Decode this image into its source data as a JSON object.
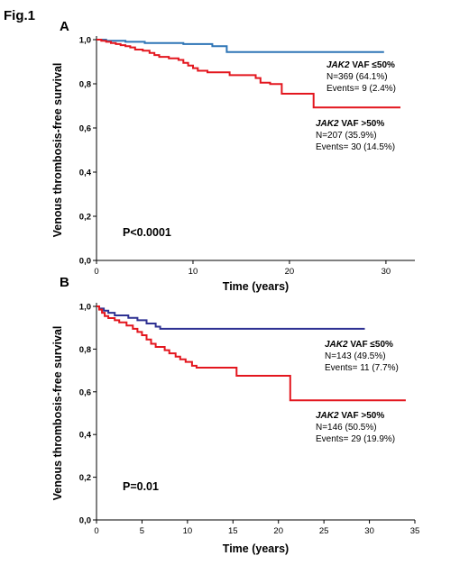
{
  "figure_title": "Fig.1",
  "chart_data": [
    {
      "type": "line",
      "panel_label": "A",
      "xlabel": "Time (years)",
      "ylabel": "Venous thrombosis-free survival",
      "xlim": [
        0,
        33
      ],
      "ylim": [
        0,
        1.0
      ],
      "x_ticks": [
        "0",
        "10",
        "20",
        "30"
      ],
      "y_ticks": [
        "0,0",
        "0,2",
        "0,4",
        "0,6",
        "0,8",
        "1,0"
      ],
      "pvalue": "P<0.0001",
      "series": [
        {
          "name_gene": "JAK2",
          "name_rest": " VAF ≤50%",
          "n_text": "N=369 (64.1%)",
          "events_text": "Events= 9 (2.4%)",
          "color": "#2e75b6",
          "points": [
            [
              0,
              1.0
            ],
            [
              1.0,
              1.0
            ],
            [
              1.0,
              0.995
            ],
            [
              3.0,
              0.995
            ],
            [
              3.0,
              0.99
            ],
            [
              5.0,
              0.99
            ],
            [
              5.0,
              0.985
            ],
            [
              9.0,
              0.985
            ],
            [
              9.0,
              0.98
            ],
            [
              12.0,
              0.98
            ],
            [
              12.0,
              0.97
            ],
            [
              13.5,
              0.97
            ],
            [
              13.5,
              0.944
            ],
            [
              29.8,
              0.944
            ]
          ]
        },
        {
          "name_gene": "JAK2",
          "name_rest": " VAF >50%",
          "n_text": "N=207 (35.9%)",
          "events_text": "Events= 30 (14.5%)",
          "color": "#e3161e",
          "points": [
            [
              0,
              1.0
            ],
            [
              0.5,
              1.0
            ],
            [
              0.5,
              0.995
            ],
            [
              1.0,
              0.995
            ],
            [
              1.0,
              0.99
            ],
            [
              1.5,
              0.99
            ],
            [
              1.5,
              0.985
            ],
            [
              2.0,
              0.985
            ],
            [
              2.0,
              0.98
            ],
            [
              2.5,
              0.98
            ],
            [
              2.5,
              0.975
            ],
            [
              3.0,
              0.975
            ],
            [
              3.0,
              0.97
            ],
            [
              3.5,
              0.97
            ],
            [
              3.5,
              0.965
            ],
            [
              4.0,
              0.965
            ],
            [
              4.0,
              0.955
            ],
            [
              4.8,
              0.955
            ],
            [
              4.8,
              0.95
            ],
            [
              5.5,
              0.95
            ],
            [
              5.5,
              0.94
            ],
            [
              6.0,
              0.94
            ],
            [
              6.0,
              0.93
            ],
            [
              6.5,
              0.93
            ],
            [
              6.5,
              0.922
            ],
            [
              7.5,
              0.922
            ],
            [
              7.5,
              0.915
            ],
            [
              8.5,
              0.915
            ],
            [
              8.5,
              0.908
            ],
            [
              9.0,
              0.908
            ],
            [
              9.0,
              0.895
            ],
            [
              9.5,
              0.895
            ],
            [
              9.5,
              0.883
            ],
            [
              10.0,
              0.883
            ],
            [
              10.0,
              0.871
            ],
            [
              10.5,
              0.871
            ],
            [
              10.5,
              0.859
            ],
            [
              11.5,
              0.859
            ],
            [
              11.5,
              0.852
            ],
            [
              13.8,
              0.852
            ],
            [
              13.8,
              0.839
            ],
            [
              16.5,
              0.839
            ],
            [
              16.5,
              0.826
            ],
            [
              17.0,
              0.826
            ],
            [
              17.0,
              0.805
            ],
            [
              18.0,
              0.805
            ],
            [
              18.0,
              0.799
            ],
            [
              19.2,
              0.799
            ],
            [
              19.2,
              0.755
            ],
            [
              22.5,
              0.755
            ],
            [
              22.5,
              0.693
            ],
            [
              31.5,
              0.693
            ]
          ]
        }
      ]
    },
    {
      "type": "line",
      "panel_label": "B",
      "xlabel": "Time (years)",
      "ylabel": "Venous thrombosis-free survival",
      "xlim": [
        0,
        35
      ],
      "ylim": [
        0,
        1.0
      ],
      "x_ticks": [
        "0",
        "5",
        "10",
        "15",
        "20",
        "25",
        "30",
        "35"
      ],
      "y_ticks": [
        "0,0",
        "0,2",
        "0,4",
        "0,6",
        "0,8",
        "1,0"
      ],
      "pvalue": "P=0.01",
      "series": [
        {
          "name_gene": "JAK2",
          "name_rest": " VAF ≤50%",
          "n_text": "N=143 (49.5%)",
          "events_text": "Events= 11 (7.7%)",
          "color": "#2e3192",
          "points": [
            [
              0,
              1.0
            ],
            [
              0.3,
              1.0
            ],
            [
              0.3,
              0.99
            ],
            [
              0.8,
              0.99
            ],
            [
              0.8,
              0.98
            ],
            [
              1.3,
              0.98
            ],
            [
              1.3,
              0.97
            ],
            [
              2.0,
              0.97
            ],
            [
              2.0,
              0.958
            ],
            [
              3.5,
              0.958
            ],
            [
              3.5,
              0.946
            ],
            [
              4.5,
              0.946
            ],
            [
              4.5,
              0.935
            ],
            [
              5.5,
              0.935
            ],
            [
              5.5,
              0.92
            ],
            [
              6.5,
              0.92
            ],
            [
              6.5,
              0.905
            ],
            [
              7.0,
              0.905
            ],
            [
              7.0,
              0.895
            ],
            [
              29.5,
              0.895
            ]
          ]
        },
        {
          "name_gene": "JAK2",
          "name_rest": " VAF >50%",
          "n_text": "N=146 (50.5%)",
          "events_text": "Events= 29 (19.9%)",
          "color": "#e3161e",
          "points": [
            [
              0,
              1.0
            ],
            [
              0.3,
              1.0
            ],
            [
              0.3,
              0.985
            ],
            [
              0.6,
              0.985
            ],
            [
              0.6,
              0.97
            ],
            [
              0.9,
              0.97
            ],
            [
              0.9,
              0.955
            ],
            [
              1.3,
              0.955
            ],
            [
              1.3,
              0.945
            ],
            [
              2.0,
              0.945
            ],
            [
              2.0,
              0.935
            ],
            [
              2.5,
              0.935
            ],
            [
              2.5,
              0.925
            ],
            [
              3.3,
              0.925
            ],
            [
              3.3,
              0.91
            ],
            [
              4.0,
              0.91
            ],
            [
              4.0,
              0.895
            ],
            [
              4.5,
              0.895
            ],
            [
              4.5,
              0.88
            ],
            [
              5.0,
              0.88
            ],
            [
              5.0,
              0.865
            ],
            [
              5.5,
              0.865
            ],
            [
              5.5,
              0.845
            ],
            [
              6.0,
              0.845
            ],
            [
              6.0,
              0.825
            ],
            [
              6.5,
              0.825
            ],
            [
              6.5,
              0.81
            ],
            [
              7.5,
              0.81
            ],
            [
              7.5,
              0.795
            ],
            [
              8.0,
              0.795
            ],
            [
              8.0,
              0.78
            ],
            [
              8.7,
              0.78
            ],
            [
              8.7,
              0.765
            ],
            [
              9.2,
              0.765
            ],
            [
              9.2,
              0.752
            ],
            [
              9.8,
              0.752
            ],
            [
              9.8,
              0.74
            ],
            [
              10.5,
              0.74
            ],
            [
              10.5,
              0.722
            ],
            [
              11.0,
              0.722
            ],
            [
              11.0,
              0.713
            ],
            [
              15.4,
              0.713
            ],
            [
              15.4,
              0.675
            ],
            [
              21.3,
              0.675
            ],
            [
              21.3,
              0.56
            ],
            [
              34.0,
              0.56
            ]
          ]
        }
      ]
    }
  ]
}
